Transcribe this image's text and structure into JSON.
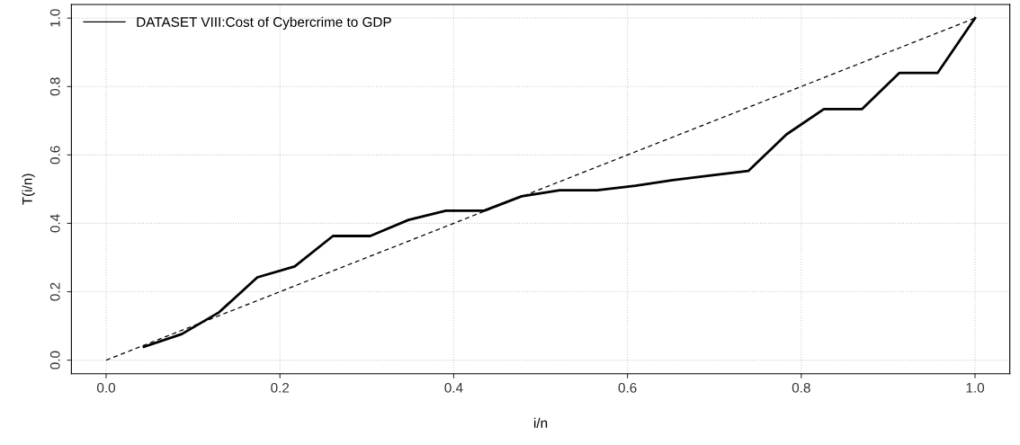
{
  "chart_data": {
    "type": "line",
    "xlabel": "i/n",
    "ylabel": "T(i/n)",
    "xlim": [
      -0.04,
      1.04
    ],
    "ylim": [
      -0.04,
      1.04
    ],
    "xticks": [
      {
        "value": 0,
        "label": "0.0"
      },
      {
        "value": 0.2,
        "label": "0.2"
      },
      {
        "value": 0.4,
        "label": "0.4"
      },
      {
        "value": 0.6,
        "label": "0.6"
      },
      {
        "value": 0.8,
        "label": "0.8"
      },
      {
        "value": 1,
        "label": "1.0"
      }
    ],
    "yticks": [
      {
        "value": 0,
        "label": "0.0"
      },
      {
        "value": 0.2,
        "label": "0.2"
      },
      {
        "value": 0.4,
        "label": "0.4"
      },
      {
        "value": 0.6,
        "label": "0.6"
      },
      {
        "value": 0.8,
        "label": "0.8"
      },
      {
        "value": 1,
        "label": "1.0"
      }
    ],
    "grid": true,
    "legend": "top left",
    "marker": "none",
    "series": [
      {
        "name": "DATASET VIII:Cost of Cybercrime to GDP",
        "color": "#000000",
        "line_style": "solid",
        "x": [
          0.0435,
          0.087,
          0.13,
          0.174,
          0.217,
          0.261,
          0.304,
          0.348,
          0.391,
          0.435,
          0.478,
          0.522,
          0.565,
          0.609,
          0.652,
          0.696,
          0.739,
          0.783,
          0.826,
          0.87,
          0.913,
          0.957,
          1.0
        ],
        "values": [
          0.039,
          0.076,
          0.14,
          0.242,
          0.274,
          0.363,
          0.363,
          0.41,
          0.437,
          0.437,
          0.479,
          0.497,
          0.497,
          0.51,
          0.526,
          0.54,
          0.553,
          0.66,
          0.734,
          0.734,
          0.84,
          0.84,
          1.0
        ]
      },
      {
        "color": "#000000",
        "line_style": "dashed",
        "x": [
          0,
          1
        ],
        "values": [
          0,
          1
        ]
      }
    ]
  }
}
